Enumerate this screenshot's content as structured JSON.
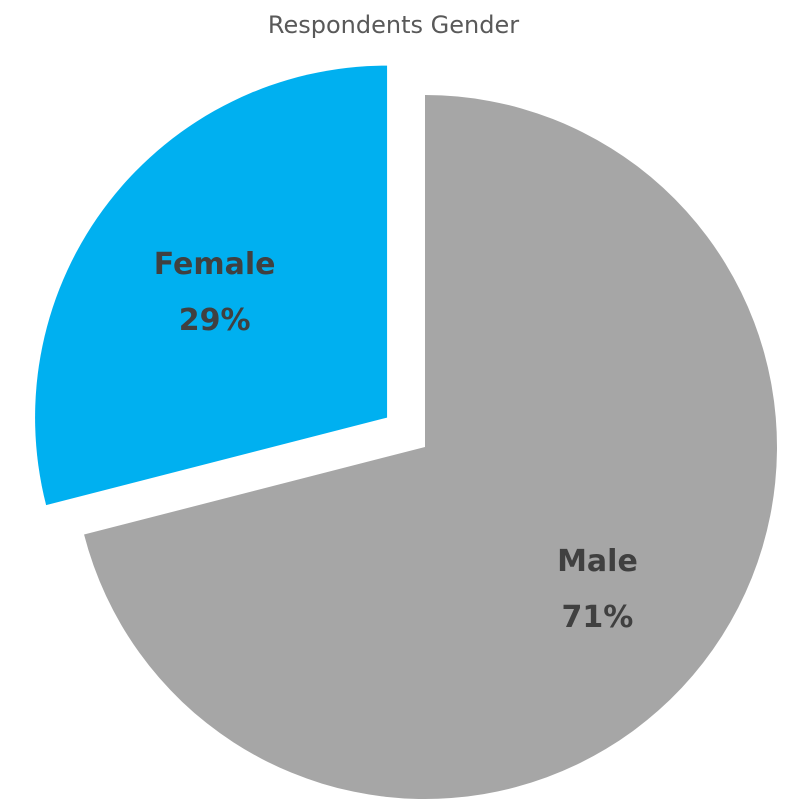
{
  "chart_data": {
    "type": "pie",
    "title": "Respondents Gender",
    "slices": [
      {
        "label": "Male",
        "percent_label": "71%",
        "value": 71,
        "color": "#a6a6a6",
        "exploded": false
      },
      {
        "label": "Female",
        "percent_label": "29%",
        "value": 29,
        "color": "#00b0f0",
        "exploded": true
      }
    ],
    "start_angle_deg": 0,
    "direction": "clockwise",
    "legend": "none",
    "data_labels": "inside"
  }
}
